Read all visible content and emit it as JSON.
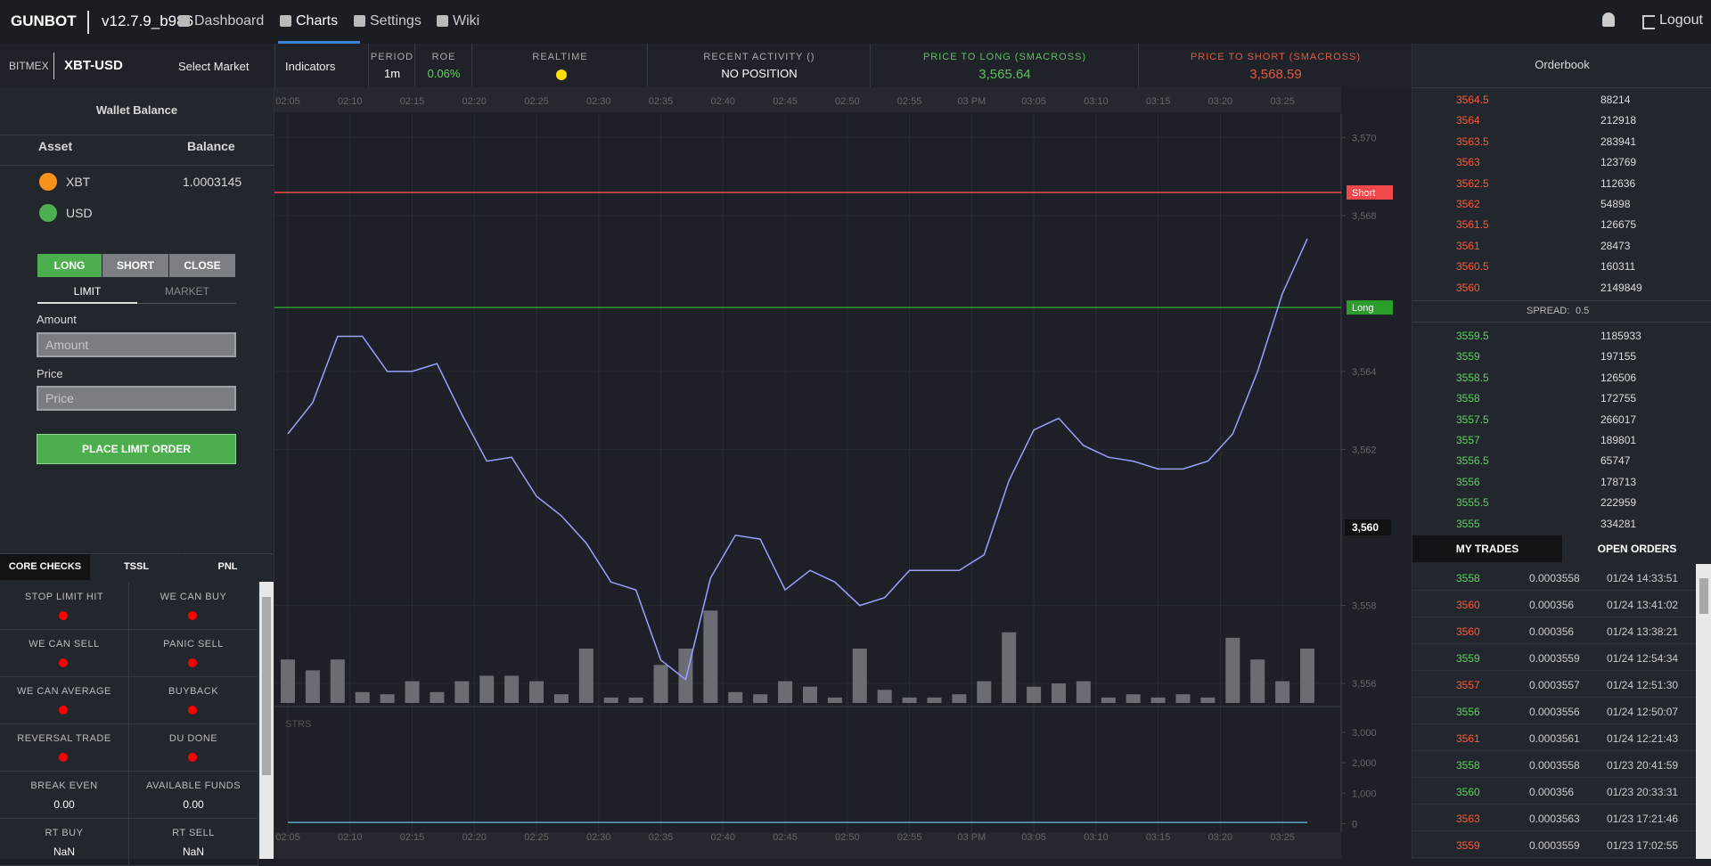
{
  "nav": {
    "brand": "GUNBOT",
    "version": "v12.7.9_b986",
    "links": [
      "Dashboard",
      "Charts",
      "Settings",
      "Wiki"
    ],
    "logout": "Logout"
  },
  "market_bar": {
    "exchange": "BITMEX",
    "pair": "XBT-USD",
    "select": "Select Market",
    "indicators": "Indicators"
  },
  "stats": [
    {
      "label": "PERIOD",
      "value": "1m"
    },
    {
      "label": "ROE",
      "value": "0.06%"
    },
    {
      "label": "REALTIME"
    },
    {
      "label": "RECENT ACTIVITY ()",
      "value": "NO POSITION"
    },
    {
      "label": "PRICE TO LONG (SMACROSS)",
      "value": "3,565.64"
    },
    {
      "label": "PRICE TO SHORT (SMACROSS)",
      "value": "3,568.59"
    }
  ],
  "wallet": {
    "title": "Wallet Balance",
    "headers": [
      "Asset",
      "Balance"
    ],
    "rows": [
      {
        "asset": "XBT",
        "balance": "1.0003145"
      },
      {
        "asset": "USD"
      }
    ]
  },
  "order_form": {
    "sides": [
      "LONG",
      "SHORT",
      "CLOSE"
    ],
    "types": [
      "LIMIT",
      "MARKET"
    ],
    "amount_label": "Amount",
    "amount_placeholder": "Amount",
    "price_label": "Price",
    "price_placeholder": "Price",
    "submit": "PLACE LIMIT ORDER"
  },
  "checks": {
    "tabs": [
      "CORE CHECKS",
      "TSSL",
      "PNL"
    ],
    "items": [
      {
        "label": "STOP LIMIT HIT"
      },
      {
        "label": "WE CAN BUY"
      },
      {
        "label": "WE CAN SELL"
      },
      {
        "label": "PANIC SELL"
      },
      {
        "label": "WE CAN AVERAGE"
      },
      {
        "label": "BUYBACK"
      },
      {
        "label": "REVERSAL TRADE"
      },
      {
        "label": "DU DONE"
      },
      {
        "label": "BREAK EVEN",
        "value": "0.00"
      },
      {
        "label": "AVAILABLE FUNDS",
        "value": "0.00"
      },
      {
        "label": "RT BUY",
        "value": "NaN"
      },
      {
        "label": "RT SELL",
        "value": "NaN"
      }
    ]
  },
  "orderbook": {
    "title": "Orderbook",
    "asks": [
      [
        "3564.5",
        "88214"
      ],
      [
        "3564",
        "212918"
      ],
      [
        "3563.5",
        "283941"
      ],
      [
        "3563",
        "123769"
      ],
      [
        "3562.5",
        "112636"
      ],
      [
        "3562",
        "54898"
      ],
      [
        "3561.5",
        "126675"
      ],
      [
        "3561",
        "28473"
      ],
      [
        "3560.5",
        "160311"
      ],
      [
        "3560",
        "2149849"
      ]
    ],
    "spread_label": "SPREAD:",
    "spread": "0.5",
    "bids": [
      [
        "3559.5",
        "1185933"
      ],
      [
        "3559",
        "197155"
      ],
      [
        "3558.5",
        "126506"
      ],
      [
        "3558",
        "172755"
      ],
      [
        "3557.5",
        "266017"
      ],
      [
        "3557",
        "189801"
      ],
      [
        "3556.5",
        "65747"
      ],
      [
        "3556",
        "178713"
      ],
      [
        "3555.5",
        "222959"
      ],
      [
        "3555",
        "334281"
      ]
    ]
  },
  "trades": {
    "tabs": [
      "MY TRADES",
      "OPEN ORDERS"
    ],
    "rows": [
      {
        "price": "3558",
        "amount": "0.0003558",
        "time": "01/24 14:33:51",
        "color": "#5fd35f"
      },
      {
        "price": "3560",
        "amount": "0.000356",
        "time": "01/24 13:41:02",
        "color": "#ff5a36"
      },
      {
        "price": "3560",
        "amount": "0.000356",
        "time": "01/24 13:38:21",
        "color": "#ff5a36"
      },
      {
        "price": "3559",
        "amount": "0.0003559",
        "time": "01/24 12:54:34",
        "color": "#5fd35f"
      },
      {
        "price": "3557",
        "amount": "0.0003557",
        "time": "01/24 12:51:30",
        "color": "#ff5a36"
      },
      {
        "price": "3556",
        "amount": "0.0003556",
        "time": "01/24 12:50:07",
        "color": "#5fd35f"
      },
      {
        "price": "3561",
        "amount": "0.0003561",
        "time": "01/24 12:21:43",
        "color": "#ff5a36"
      },
      {
        "price": "3558",
        "amount": "0.0003558",
        "time": "01/23 20:41:59",
        "color": "#5fd35f"
      },
      {
        "price": "3560",
        "amount": "0.000356",
        "time": "01/23 20:33:31",
        "color": "#5fd35f"
      },
      {
        "price": "3563",
        "amount": "0.0003563",
        "time": "01/23 17:21:46",
        "color": "#ff5a36"
      },
      {
        "price": "3559",
        "amount": "0.0003559",
        "time": "01/23 17:02:55",
        "color": "#ff5a36"
      }
    ]
  },
  "chart_data": {
    "type": "line",
    "color": "#9aa0ff",
    "xtick_labels": [
      "02:05",
      "02:10",
      "02:15",
      "02:20",
      "02:25",
      "02:30",
      "02:35",
      "02:40",
      "02:45",
      "02:50",
      "02:55",
      "03 PM",
      "03:05",
      "03:10",
      "03:15",
      "03:20",
      "03:25"
    ],
    "values": [
      3562.4,
      3563.2,
      3564.9,
      3564.9,
      3564.0,
      3564.0,
      3564.2,
      3562.9,
      3561.7,
      3561.8,
      3560.8,
      3560.3,
      3559.6,
      3558.6,
      3558.4,
      3556.6,
      3556.1,
      3558.7,
      3559.8,
      3559.7,
      3558.4,
      3558.9,
      3558.6,
      3558.0,
      3558.2,
      3558.9,
      3558.9,
      3558.9,
      3559.3,
      3561.2,
      3562.5,
      3562.8,
      3562.1,
      3561.8,
      3561.7,
      3561.5,
      3561.5,
      3561.7,
      3562.4,
      3564.0,
      3566.0,
      3567.4
    ],
    "ylim": [
      3555.5,
      3570.6
    ],
    "yticks": [
      {
        "value": 3556,
        "label": "3,556"
      },
      {
        "value": 3558,
        "label": "3,558"
      },
      {
        "value": 3562,
        "label": "3,562"
      },
      {
        "value": 3564,
        "label": "3,564"
      },
      {
        "value": 3568,
        "label": "3,568"
      },
      {
        "value": 3570,
        "label": "3,570"
      }
    ],
    "grid": true,
    "last_price": {
      "value": 3560,
      "label": "3,560"
    },
    "levels": [
      {
        "label": "Short",
        "value": 3568.59,
        "color": "#f0484a"
      },
      {
        "label": "Long",
        "value": 3565.64,
        "color": "#2a9d2a"
      }
    ],
    "volume": {
      "color": "#6a6d72",
      "ylim": [
        0,
        100
      ],
      "values": [
        40,
        30,
        40,
        10,
        8,
        20,
        10,
        20,
        25,
        25,
        20,
        8,
        50,
        5,
        5,
        35,
        50,
        85,
        10,
        8,
        20,
        15,
        5,
        50,
        12,
        5,
        5,
        8,
        20,
        65,
        15,
        18,
        20,
        5,
        8,
        5,
        8,
        5,
        60,
        40,
        20,
        50
      ]
    },
    "strs": {
      "label": "STRS",
      "color": "#5fa8c8",
      "ylim": [
        -250,
        3700
      ],
      "yticks": [
        0,
        {
          "value": 1000,
          "label": "1,000"
        },
        {
          "value": 2000,
          "label": "2,000"
        },
        {
          "value": 3000,
          "label": "3,000"
        }
      ],
      "values": [
        40,
        40,
        40,
        40,
        40,
        40,
        40,
        40,
        40,
        40,
        40,
        40,
        40,
        40,
        40,
        40,
        40,
        40,
        40,
        40,
        40,
        40,
        40,
        40,
        40,
        40,
        40,
        40,
        40,
        40,
        40,
        40,
        40,
        40,
        40,
        40,
        40,
        40,
        40,
        40,
        40,
        40
      ]
    }
  }
}
